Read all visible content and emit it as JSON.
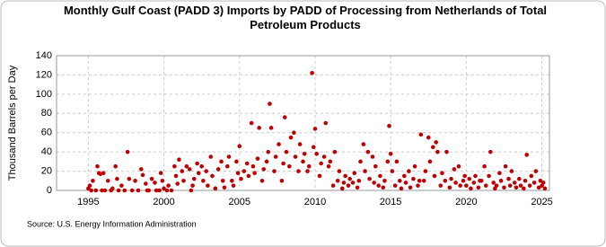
{
  "chart_data": {
    "type": "scatter",
    "title": "Monthly Gulf Coast (PADD 3) Imports by PADD of Processing from Netherlands of Total Petroleum Products",
    "y_label": "Thousand Barrels per Day",
    "source": "Source: U.S. Energy Information Administration",
    "color": "#c00000",
    "grid": true,
    "xlim": [
      1992.9,
      2025.5
    ],
    "xticks": [
      1995,
      2000,
      2005,
      2010,
      2015,
      2020,
      2025
    ],
    "ylim": [
      0,
      140
    ],
    "yticks": [
      0,
      20,
      40,
      60,
      80,
      100,
      120,
      140
    ],
    "x": [
      1995.0,
      1995.1,
      1995.2,
      1995.3,
      1995.5,
      1995.6,
      1995.7,
      1995.8,
      1995.9,
      1996.0,
      1996.1,
      1996.3,
      1996.5,
      1996.6,
      1996.8,
      1996.9,
      1997.0,
      1997.2,
      1997.4,
      1997.6,
      1997.7,
      1997.9,
      1998.1,
      1998.3,
      1998.5,
      1998.6,
      1998.8,
      1998.9,
      1999.0,
      1999.2,
      1999.4,
      1999.5,
      1999.7,
      1999.8,
      1999.9,
      2000.0,
      2000.2,
      2000.3,
      2000.5,
      2000.7,
      2000.8,
      2000.9,
      2001.0,
      2001.2,
      2001.3,
      2001.5,
      2001.7,
      2001.8,
      2001.9,
      2002.0,
      2002.2,
      2002.3,
      2002.5,
      2002.6,
      2002.8,
      2002.9,
      2003.1,
      2003.2,
      2003.4,
      2003.6,
      2003.8,
      2003.9,
      2004.0,
      2004.2,
      2004.3,
      2004.5,
      2004.6,
      2004.8,
      2004.9,
      2005.0,
      2005.1,
      2005.3,
      2005.5,
      2005.6,
      2005.8,
      2005.9,
      2006.0,
      2006.2,
      2006.3,
      2006.5,
      2006.6,
      2006.8,
      2006.9,
      2007.0,
      2007.1,
      2007.3,
      2007.4,
      2007.6,
      2007.8,
      2007.9,
      2008.0,
      2008.1,
      2008.3,
      2008.4,
      2008.6,
      2008.7,
      2008.9,
      2009.0,
      2009.2,
      2009.3,
      2009.5,
      2009.6,
      2009.8,
      2009.9,
      2010.0,
      2010.1,
      2010.3,
      2010.4,
      2010.6,
      2010.7,
      2010.9,
      2011.0,
      2011.2,
      2011.3,
      2011.5,
      2011.6,
      2011.8,
      2011.9,
      2012.0,
      2012.2,
      2012.3,
      2012.5,
      2012.6,
      2012.8,
      2012.9,
      2013.0,
      2013.2,
      2013.3,
      2013.5,
      2013.6,
      2013.8,
      2013.9,
      2014.0,
      2014.2,
      2014.3,
      2014.5,
      2014.6,
      2014.8,
      2014.9,
      2015.0,
      2015.1,
      2015.3,
      2015.4,
      2015.6,
      2015.7,
      2015.9,
      2016.0,
      2016.2,
      2016.3,
      2016.5,
      2016.6,
      2016.8,
      2016.9,
      2017.0,
      2017.2,
      2017.3,
      2017.5,
      2017.6,
      2017.8,
      2017.9,
      2018.0,
      2018.1,
      2018.3,
      2018.4,
      2018.6,
      2018.7,
      2018.9,
      2019.0,
      2019.2,
      2019.3,
      2019.5,
      2019.6,
      2019.8,
      2019.9,
      2020.0,
      2020.2,
      2020.3,
      2020.5,
      2020.6,
      2020.8,
      2020.9,
      2021.0,
      2021.2,
      2021.3,
      2021.5,
      2021.6,
      2021.8,
      2021.9,
      2022.0,
      2022.2,
      2022.3,
      2022.5,
      2022.6,
      2022.8,
      2022.9,
      2023.0,
      2023.2,
      2023.3,
      2023.5,
      2023.6,
      2023.8,
      2023.9,
      2024.0,
      2024.2,
      2024.3,
      2024.5,
      2024.6,
      2024.8,
      2024.9,
      2025.0,
      2025.1,
      2025.2
    ],
    "values": [
      2,
      5,
      0,
      10,
      0,
      25,
      18,
      17,
      0,
      18,
      0,
      10,
      0,
      2,
      25,
      12,
      0,
      5,
      0,
      40,
      12,
      0,
      10,
      0,
      22,
      16,
      7,
      0,
      0,
      12,
      8,
      0,
      0,
      18,
      10,
      2,
      0,
      5,
      0,
      25,
      15,
      7,
      32,
      20,
      10,
      25,
      22,
      0,
      5,
      12,
      28,
      18,
      25,
      10,
      20,
      5,
      35,
      15,
      2,
      22,
      30,
      10,
      3,
      25,
      35,
      10,
      5,
      30,
      18,
      46,
      12,
      20,
      28,
      15,
      70,
      25,
      18,
      33,
      65,
      10,
      22,
      30,
      40,
      90,
      65,
      20,
      35,
      48,
      10,
      28,
      76,
      40,
      25,
      55,
      60,
      35,
      20,
      48,
      30,
      38,
      20,
      25,
      122,
      45,
      64,
      38,
      15,
      28,
      35,
      70,
      25,
      30,
      5,
      40,
      10,
      20,
      2,
      8,
      15,
      5,
      12,
      8,
      18,
      3,
      10,
      30,
      48,
      20,
      40,
      12,
      35,
      8,
      25,
      5,
      15,
      3,
      10,
      30,
      67,
      38,
      20,
      5,
      30,
      10,
      2,
      15,
      8,
      20,
      3,
      12,
      25,
      5,
      10,
      58,
      10,
      20,
      55,
      30,
      45,
      15,
      50,
      40,
      5,
      18,
      10,
      40,
      3,
      12,
      22,
      8,
      25,
      5,
      10,
      15,
      5,
      12,
      2,
      8,
      15,
      3,
      10,
      10,
      25,
      5,
      15,
      40,
      8,
      2,
      5,
      18,
      10,
      3,
      25,
      12,
      5,
      20,
      8,
      3,
      12,
      5,
      2,
      10,
      37,
      5,
      15,
      8,
      20,
      3,
      10,
      5,
      8,
      2
    ]
  }
}
